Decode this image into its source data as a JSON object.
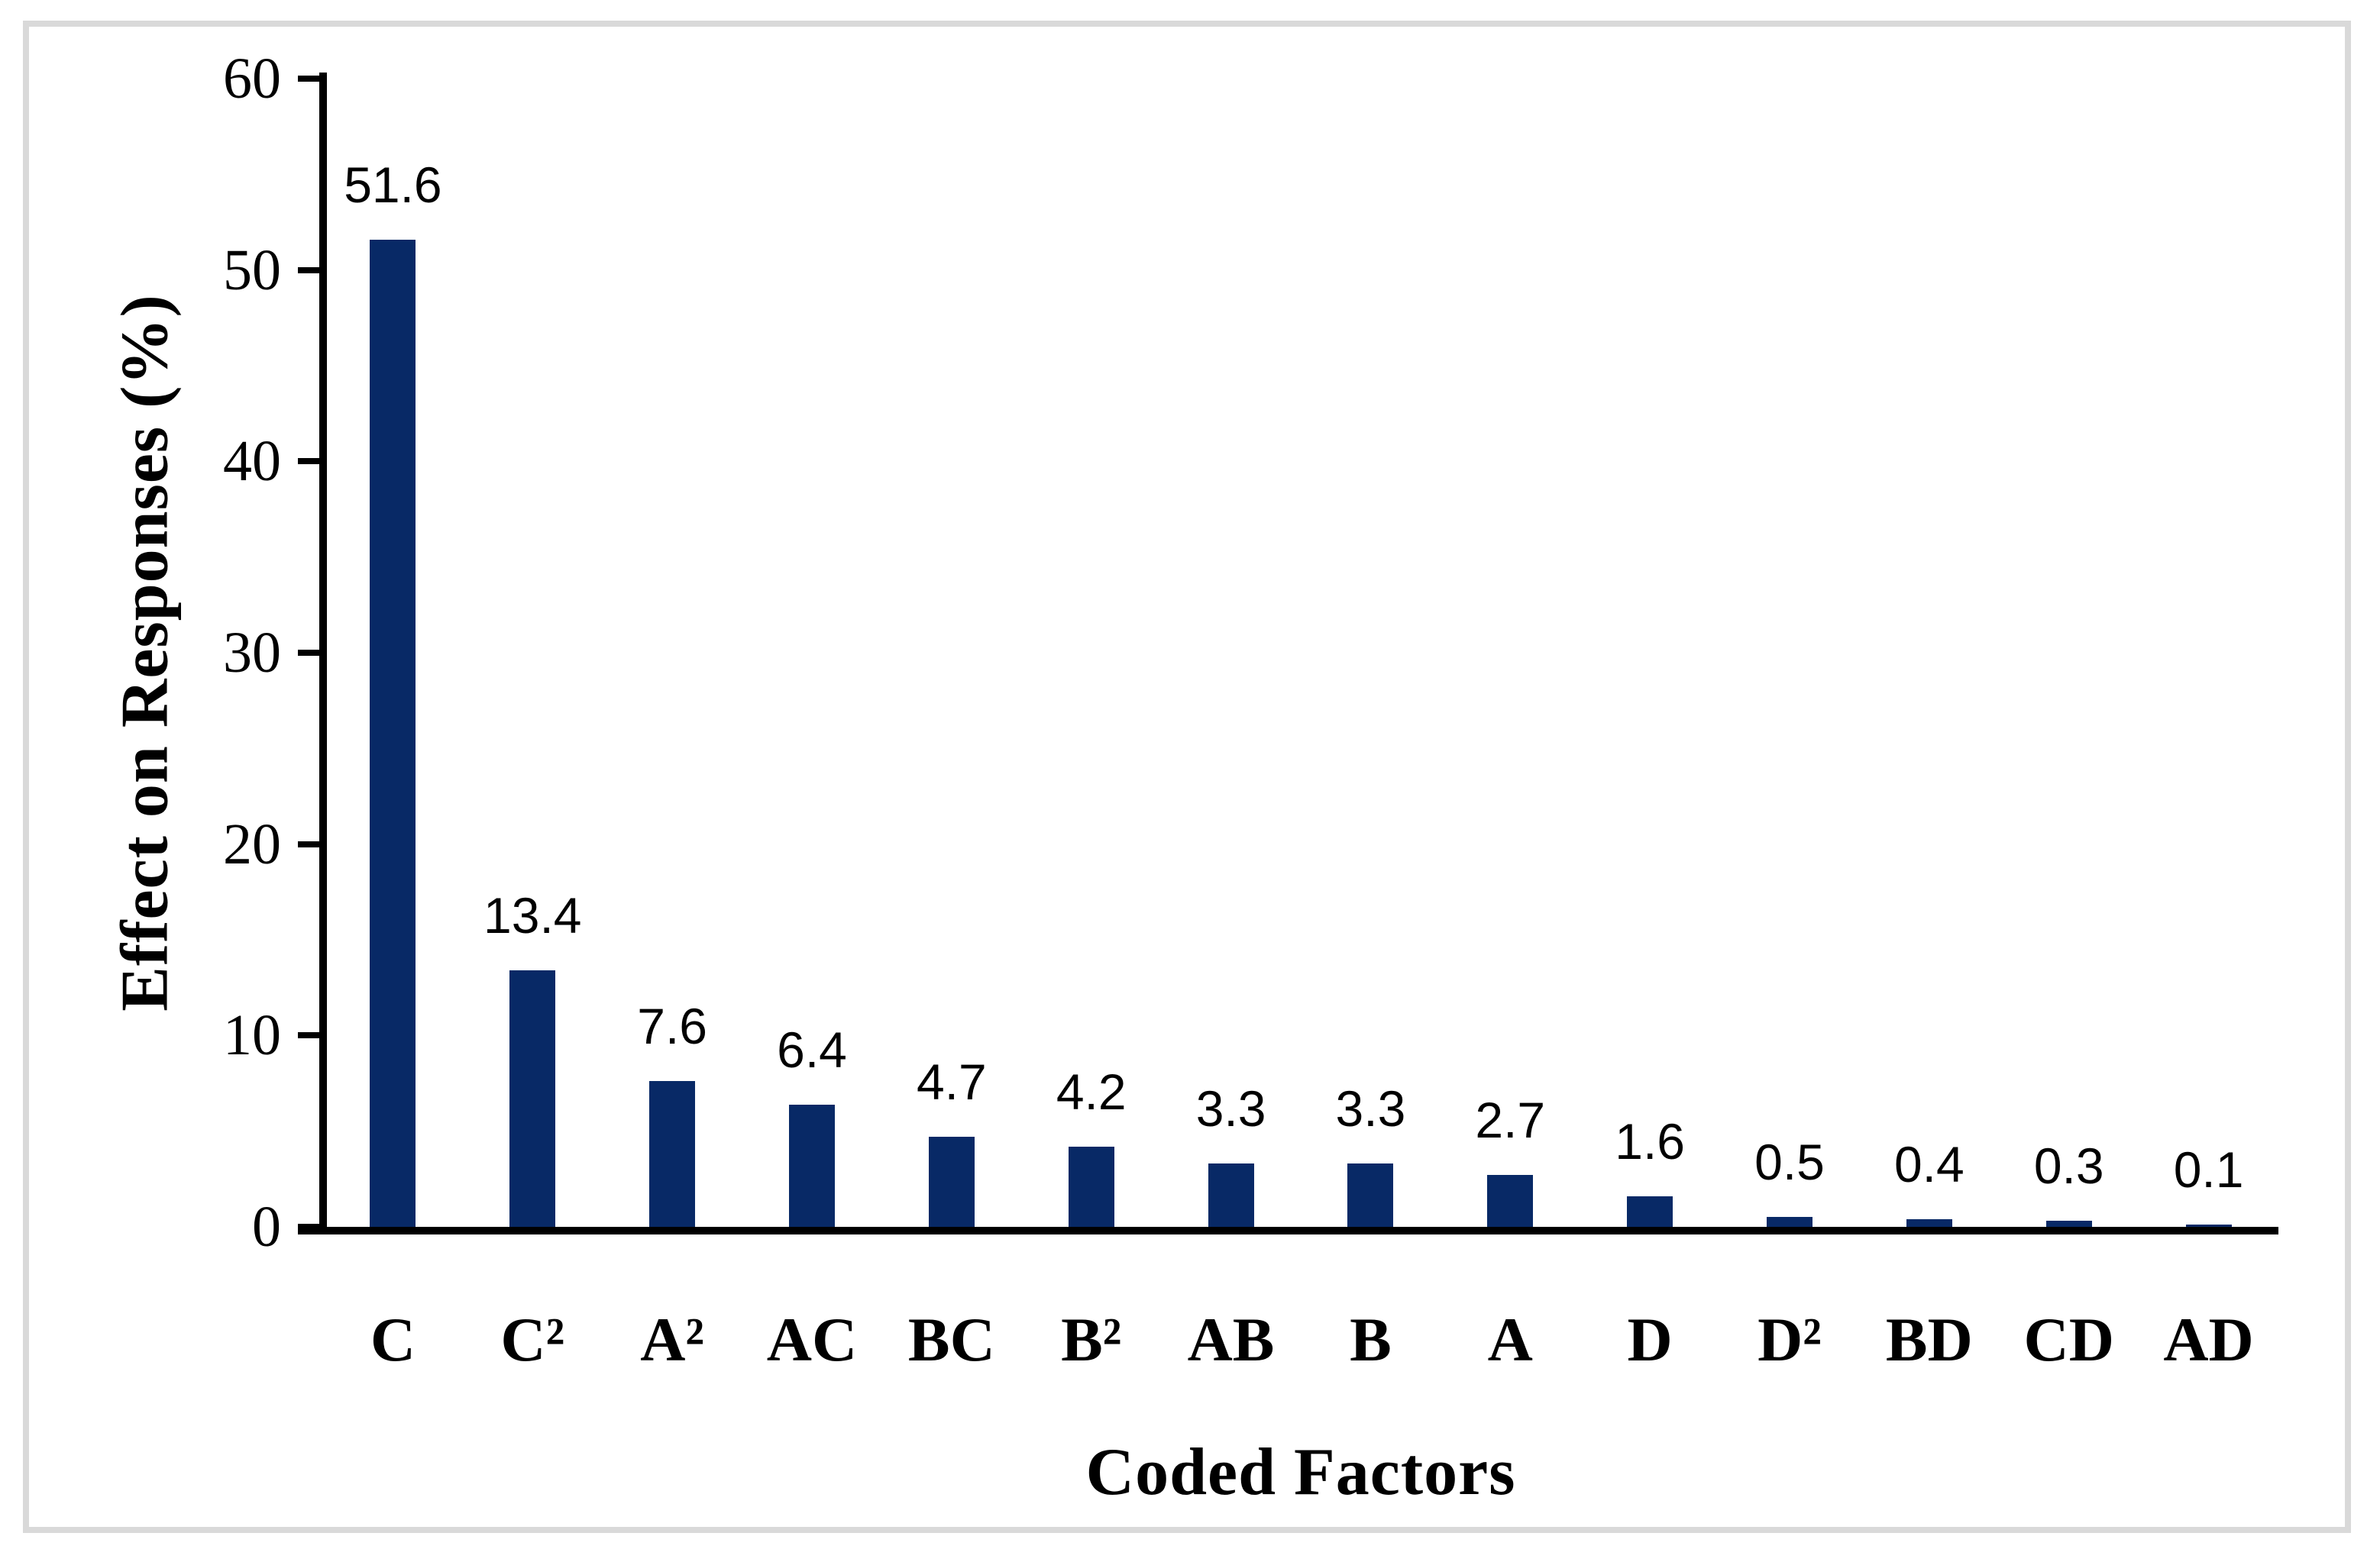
{
  "chart_data": {
    "type": "bar",
    "title": "",
    "xlabel": "Coded Factors",
    "ylabel": "Effect on Responses (%)",
    "categories": [
      "C",
      "C²",
      "A²",
      "AC",
      "BC",
      "B²",
      "AB",
      "B",
      "A",
      "D",
      "D²",
      "BD",
      "CD",
      "AD"
    ],
    "values": [
      51.6,
      13.4,
      7.6,
      6.4,
      4.7,
      4.2,
      3.3,
      3.3,
      2.7,
      1.6,
      0.5,
      0.4,
      0.3,
      0.1
    ],
    "data_labels": [
      "51.6",
      "13.4",
      "7.6",
      "6.4",
      "4.7",
      "4.2",
      "3.3",
      "3.3",
      "2.7",
      "1.6",
      "0.5",
      "0.4",
      "0.3",
      "0.1"
    ],
    "ylim": [
      0,
      60
    ],
    "yticks": [
      0,
      10,
      20,
      30,
      40,
      50,
      60
    ],
    "grid": false,
    "legend_position": "none",
    "bar_color": "#082966",
    "axis_color": "#000000",
    "frame_color": "#d9d9d9"
  }
}
